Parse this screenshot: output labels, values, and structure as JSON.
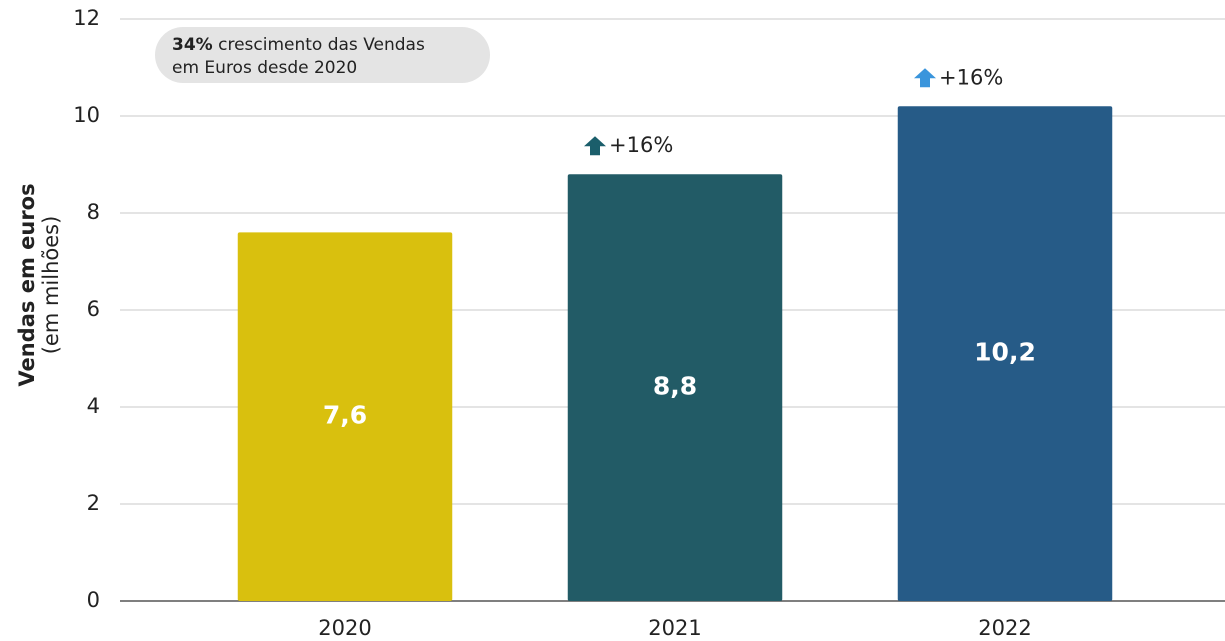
{
  "chart_data": {
    "type": "bar",
    "y_axis_label": "Vendas em euros",
    "y_axis_sublabel": "(em milhões)",
    "annotation": {
      "highlight": "34%",
      "lines": [
        "crescimento das Vendas",
        "em Euros desde 2020"
      ]
    },
    "categories": [
      "2020",
      "2021",
      "2022"
    ],
    "values": [
      7.6,
      8.8,
      10.2
    ],
    "value_labels": [
      "7,6",
      "8,8",
      "10,2"
    ],
    "colors": [
      "#d9c00e",
      "#225b66",
      "#265b87"
    ],
    "growth_labels": [
      null,
      "+16%",
      "+16%"
    ],
    "growth_arrow_colors": [
      null,
      "#1b5e6b",
      "#3a95dc"
    ],
    "ylim": [
      0,
      12
    ],
    "yticks": [
      0,
      2,
      4,
      6,
      8,
      10,
      12
    ],
    "grid": true
  }
}
